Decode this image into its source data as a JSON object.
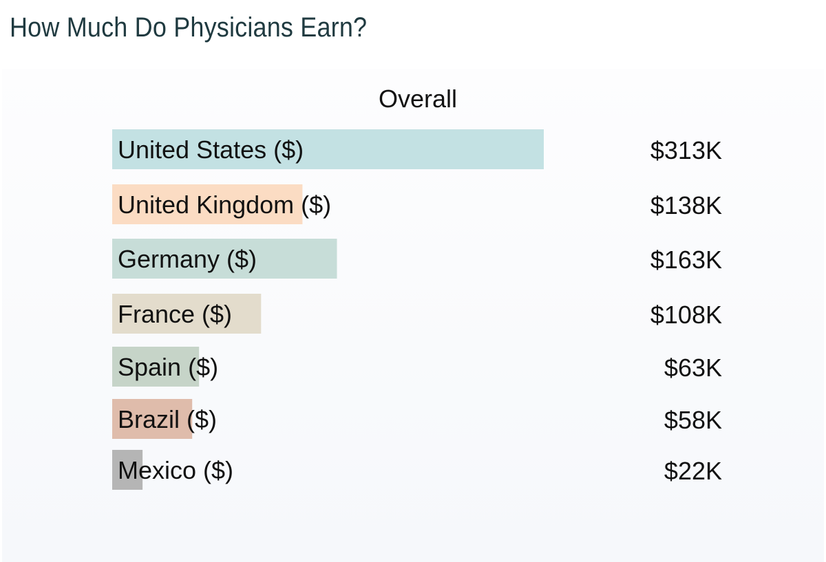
{
  "header": {
    "title": "How Much Do Physicians Earn?"
  },
  "chart_data": {
    "type": "bar",
    "orientation": "horizontal",
    "title": "Overall",
    "xlabel": "",
    "ylabel": "",
    "grid": false,
    "legend": "none",
    "xlim": [
      0,
      313
    ],
    "unit": "thousand USD",
    "categories": [
      "United States ($)",
      "United Kingdom ($)",
      "Germany ($)",
      "France ($)",
      "Spain ($)",
      "Brazil ($)",
      "Mexico ($)"
    ],
    "values": [
      313,
      138,
      163,
      108,
      63,
      58,
      22
    ],
    "value_labels": [
      "$313K",
      "$138K",
      "$163K",
      "$108K",
      "$63K",
      "$58K",
      "$22K"
    ],
    "colors": [
      "#c3e1e3",
      "#fbdcc3",
      "#c7ddd8",
      "#e3dccc",
      "#c6d4c8",
      "#dfbcab",
      "#b5b5b5"
    ]
  }
}
